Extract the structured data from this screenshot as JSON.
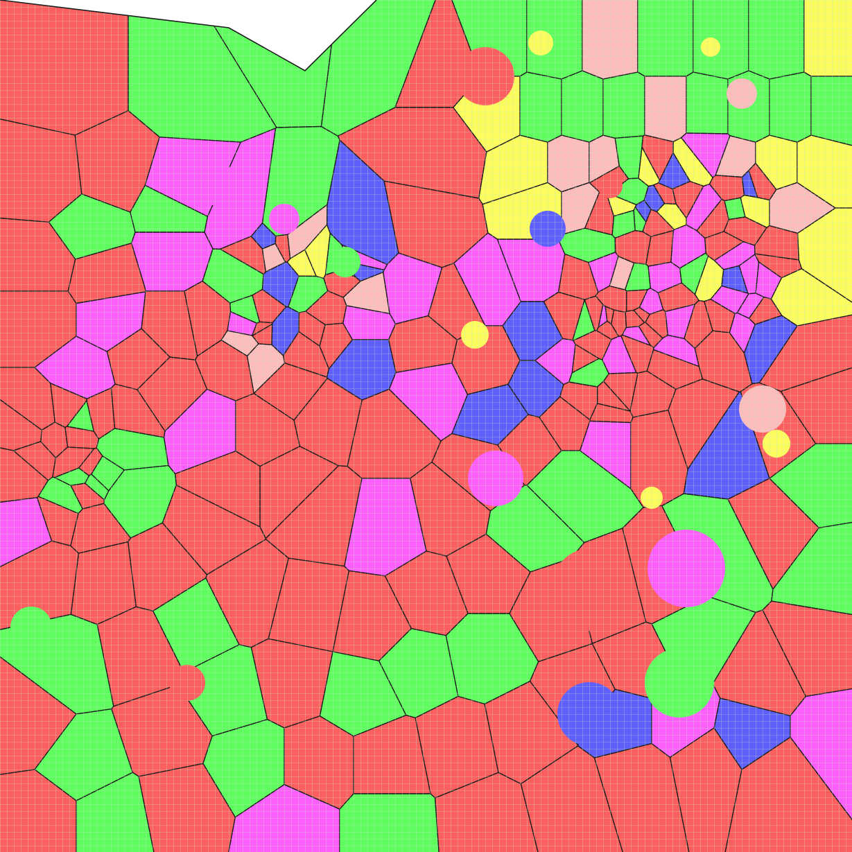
{
  "palette": {
    "red": "#fc5f5f",
    "green": "#5ffc5f",
    "magenta": "#fc5ffc",
    "blue": "#5f5ffc",
    "yellow": "#fcfc5f",
    "pink": "#fcbcbc",
    "grid_line": "#c8e8c8",
    "edge": "#1c1c1c",
    "empty": "#ffffff"
  },
  "regions": [
    "red",
    "green",
    "green",
    "red",
    "green",
    "green",
    "red",
    "red",
    "green",
    "magenta",
    "magenta",
    "magenta",
    "blue",
    "green",
    "red",
    "red",
    "magenta",
    "magenta",
    "blue",
    "red",
    "red",
    "magenta",
    "magenta",
    "blue",
    "blue",
    "blue",
    "red",
    "red",
    "magenta",
    "red",
    "red",
    "red",
    "red",
    "red",
    "red",
    "red",
    "magenta",
    "red",
    "red",
    "red",
    "red",
    "magenta",
    "red",
    "red",
    "red",
    "red",
    "magenta",
    "red",
    "red",
    "red",
    "red",
    "magenta",
    "red",
    "magenta",
    "red",
    "red",
    "red",
    "magenta",
    "red",
    "red",
    "green",
    "green",
    "red",
    "red",
    "red",
    "red",
    "red",
    "green",
    "red",
    "green",
    "red",
    "green",
    "red",
    "green",
    "red",
    "green",
    "green",
    "green",
    "red",
    "red",
    "red",
    "green",
    "red",
    "green",
    "green",
    "red",
    "red",
    "green",
    "red",
    "red",
    "red",
    "red",
    "red",
    "red",
    "green",
    "red",
    "green",
    "red",
    "magenta",
    "green",
    "red",
    "red",
    "red",
    "red",
    "red",
    "magenta",
    "blue",
    "magenta",
    "blue",
    "red",
    "magenta",
    "red",
    "red",
    "blue",
    "red",
    "red",
    "red",
    "blue",
    "red",
    "magenta",
    "red",
    "red",
    "red",
    "pink",
    "magenta",
    "yellow",
    "magenta",
    "yellow",
    "yellow",
    "pink",
    "yellow",
    "magenta",
    "yellow",
    "yellow",
    "pink",
    "yellow",
    "yellow",
    "pink",
    "pink",
    "yellow",
    "yellow",
    "pink",
    "yellow",
    "yellow",
    "green",
    "green",
    "green",
    "green",
    "pink",
    "green",
    "green",
    "green",
    "yellow",
    "green",
    "green",
    "pink",
    "green",
    "green",
    "green",
    "yellow",
    "pink",
    "blue",
    "red",
    "pink",
    "pink",
    "blue",
    "yellow",
    "pink",
    "blue",
    "pink",
    "blue",
    "red",
    "magenta",
    "red",
    "magenta",
    "red",
    "yellow",
    "red",
    "green",
    "red",
    "green",
    "red",
    "green",
    "red",
    "green",
    "red",
    "green",
    "red",
    "green",
    "red"
  ]
}
